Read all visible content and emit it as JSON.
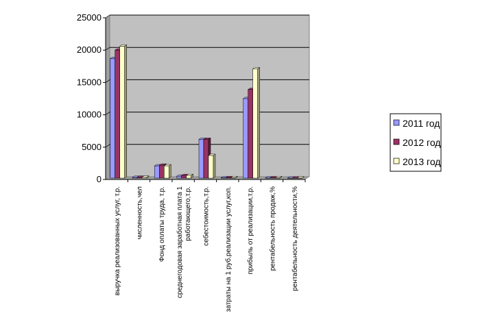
{
  "chart_data": {
    "type": "bar",
    "categories": [
      [
        "выручка реализованных услуг, т.р."
      ],
      [
        "численность,чел"
      ],
      [
        "Фонд оплаты труда, т.р."
      ],
      [
        "среднегодовая заработная плата 1",
        "работающего,т.р."
      ],
      [
        "себестоимость,т.р."
      ],
      [
        "затраты на 1 руб.реализации услуг,коп."
      ],
      [
        "прибыль от реализации,т.р."
      ],
      [
        "рентабельность продаж,%"
      ],
      [
        "рентабельность деятельности,%"
      ]
    ],
    "series": [
      {
        "name": "2011 год",
        "color": "#9999ff",
        "values": [
          18500,
          120,
          1900,
          300,
          6000,
          60,
          12300,
          40,
          20
        ]
      },
      {
        "name": "2012 год",
        "color": "#993366",
        "values": [
          19800,
          130,
          2000,
          400,
          6000,
          70,
          13700,
          50,
          25
        ]
      },
      {
        "name": "2013 год",
        "color": "#ffffcc",
        "values": [
          20400,
          140,
          1900,
          400,
          3500,
          60,
          16900,
          60,
          30
        ]
      }
    ],
    "ylim": [
      0,
      25000
    ],
    "yticks": [
      0,
      5000,
      10000,
      15000,
      20000,
      25000
    ],
    "grid": true,
    "legend_position": "right",
    "plot_background": "#c0c0c0"
  }
}
